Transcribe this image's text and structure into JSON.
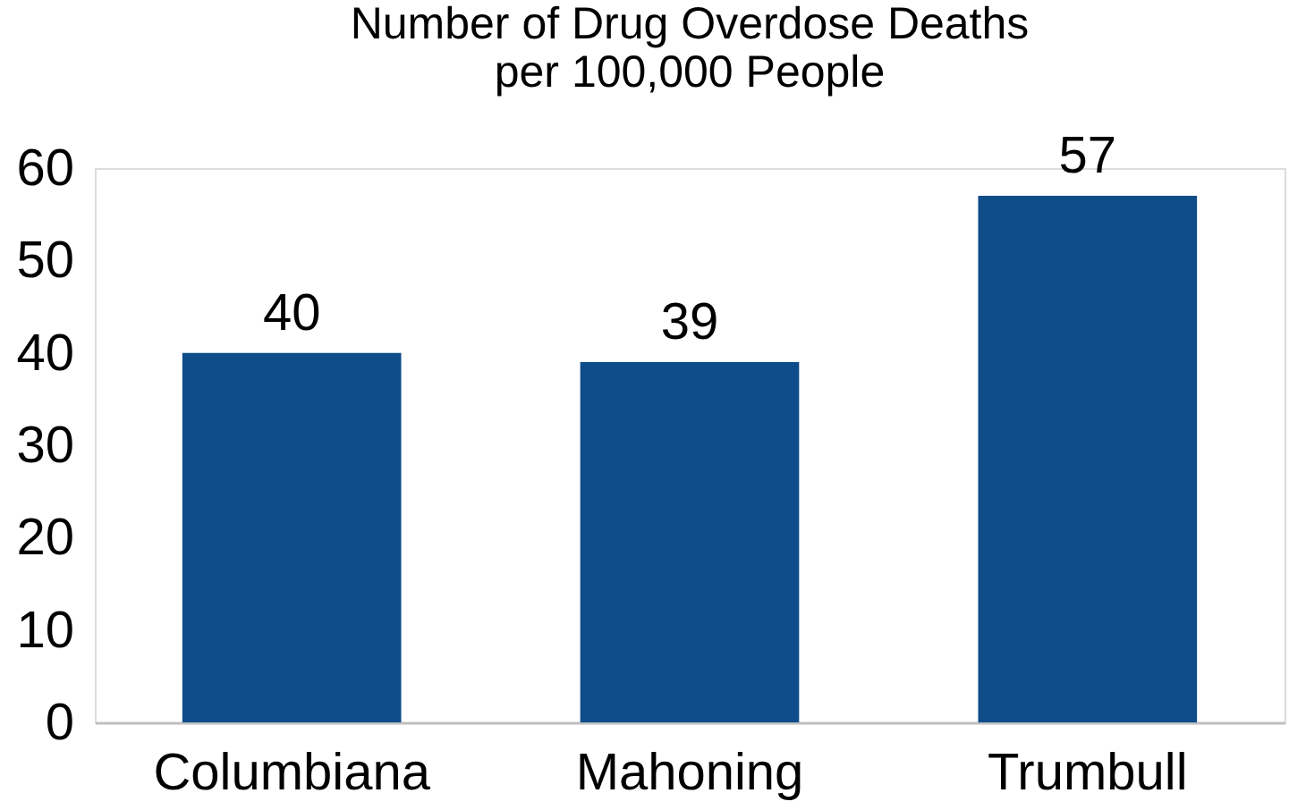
{
  "chart_data": {
    "type": "bar",
    "title": "Number of Drug Overdose Deaths per 100,000 People",
    "categories": [
      "Columbiana",
      "Mahoning",
      "Trumbull"
    ],
    "values": [
      40,
      39,
      57
    ],
    "color": "#0f4c8a",
    "ylim": [
      0,
      60
    ],
    "yticks": [
      0,
      10,
      20,
      30,
      40,
      50,
      60
    ],
    "grid": false,
    "data_labels": true
  }
}
